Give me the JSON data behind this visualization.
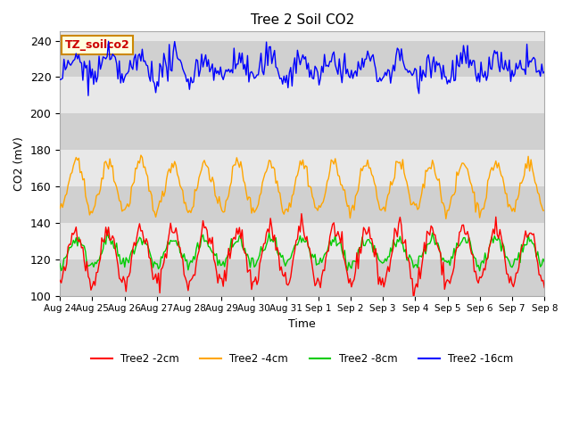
{
  "title": "Tree 2 Soil CO2",
  "ylabel": "CO2 (mV)",
  "xlabel": "Time",
  "label_box_text": "TZ_soilco2",
  "ylim": [
    100,
    245
  ],
  "yticks": [
    100,
    120,
    140,
    160,
    180,
    200,
    220,
    240
  ],
  "x_tick_labels": [
    "Aug 24",
    "Aug 25",
    "Aug 26",
    "Aug 27",
    "Aug 28",
    "Aug 29",
    "Aug 30",
    "Aug 31",
    "Sep 1",
    "Sep 2",
    "Sep 3",
    "Sep 4",
    "Sep 5",
    "Sep 6",
    "Sep 7",
    "Sep 8"
  ],
  "series_colors": {
    "2cm": "#ff0000",
    "4cm": "#ffa500",
    "8cm": "#00cc00",
    "16cm": "#0000ff"
  },
  "legend_labels": [
    "Tree2 -2cm",
    "Tree2 -4cm",
    "Tree2 -8cm",
    "Tree2 -16cm"
  ],
  "legend_colors": [
    "#ff0000",
    "#ffa500",
    "#00cc00",
    "#0000ff"
  ],
  "bg_color": "#ffffff",
  "plot_bg_color": "#e8e8e8",
  "band_color": "#d0d0d0",
  "label_box_bg": "#ffffe0",
  "label_box_border": "#cc8800",
  "label_box_text_color": "#cc0000",
  "n_points": 360,
  "days": 15,
  "seed": 42,
  "series_params": {
    "2cm": {
      "base": 122,
      "amp": 15,
      "noise": 3
    },
    "4cm": {
      "base": 160,
      "amp": 13,
      "noise": 2
    },
    "8cm": {
      "base": 124,
      "amp": 7,
      "noise": 2
    },
    "16cm": {
      "base": 225,
      "amp": 5,
      "noise": 4
    }
  }
}
